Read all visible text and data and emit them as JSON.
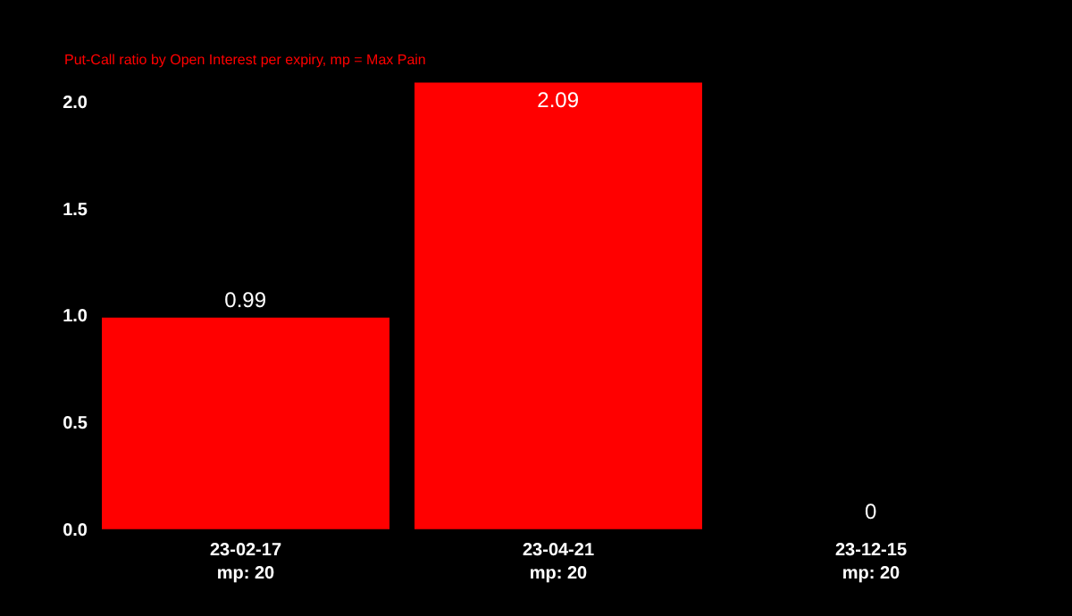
{
  "chart_data": {
    "type": "bar",
    "subtitle": "Put-Call ratio by Open Interest per expiry, mp = Max Pain",
    "categories": [
      "23-02-17\nmp: 20",
      "23-04-21\nmp: 20",
      "23-12-15\nmp: 20"
    ],
    "values": [
      0.99,
      2.09,
      0
    ],
    "color": "#ff0000",
    "data_labels": true,
    "ylim": [
      -0.03,
      2.1
    ],
    "yticks": [
      {
        "value": 0,
        "label": "0.0"
      },
      0.5,
      {
        "value": 1,
        "label": "1.0"
      },
      1.5,
      {
        "value": 2,
        "label": "2.0"
      }
    ],
    "grid": false
  }
}
